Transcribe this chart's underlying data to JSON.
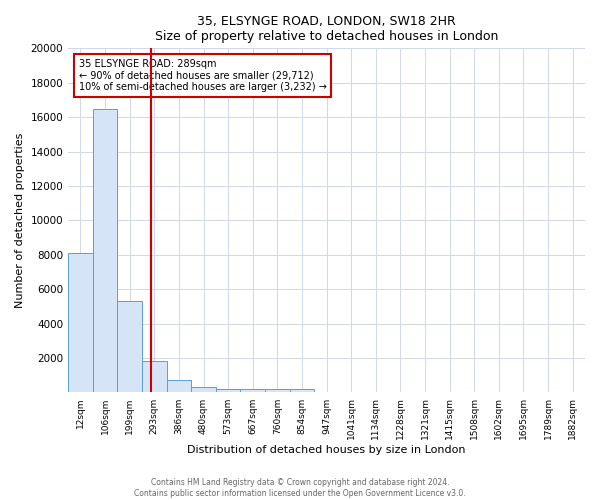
{
  "title1": "35, ELSYNGE ROAD, LONDON, SW18 2HR",
  "title2": "Size of property relative to detached houses in London",
  "xlabel": "Distribution of detached houses by size in London",
  "ylabel": "Number of detached properties",
  "bar_labels": [
    "12sqm",
    "106sqm",
    "199sqm",
    "293sqm",
    "386sqm",
    "480sqm",
    "573sqm",
    "667sqm",
    "760sqm",
    "854sqm",
    "947sqm",
    "1041sqm",
    "1134sqm",
    "1228sqm",
    "1321sqm",
    "1415sqm",
    "1508sqm",
    "1602sqm",
    "1695sqm",
    "1789sqm",
    "1882sqm"
  ],
  "bar_values": [
    8100,
    16500,
    5300,
    1850,
    700,
    320,
    220,
    190,
    185,
    175,
    0,
    0,
    0,
    0,
    0,
    0,
    0,
    0,
    0,
    0,
    0
  ],
  "bar_color": "#d6e4f7",
  "bar_edge_color": "#5a9fd4",
  "property_line_x": 2.85,
  "property_line_color": "#cc0000",
  "annotation_text": "35 ELSYNGE ROAD: 289sqm\n← 90% of detached houses are smaller (29,712)\n10% of semi-detached houses are larger (3,232) →",
  "annotation_box_color": "#ffffff",
  "annotation_box_edge": "#cc0000",
  "ylim": [
    0,
    20000
  ],
  "yticks": [
    0,
    2000,
    4000,
    6000,
    8000,
    10000,
    12000,
    14000,
    16000,
    18000,
    20000
  ],
  "footer1": "Contains HM Land Registry data © Crown copyright and database right 2024.",
  "footer2": "Contains public sector information licensed under the Open Government Licence v3.0.",
  "bg_color": "#ffffff",
  "grid_color": "#d0d8e8"
}
